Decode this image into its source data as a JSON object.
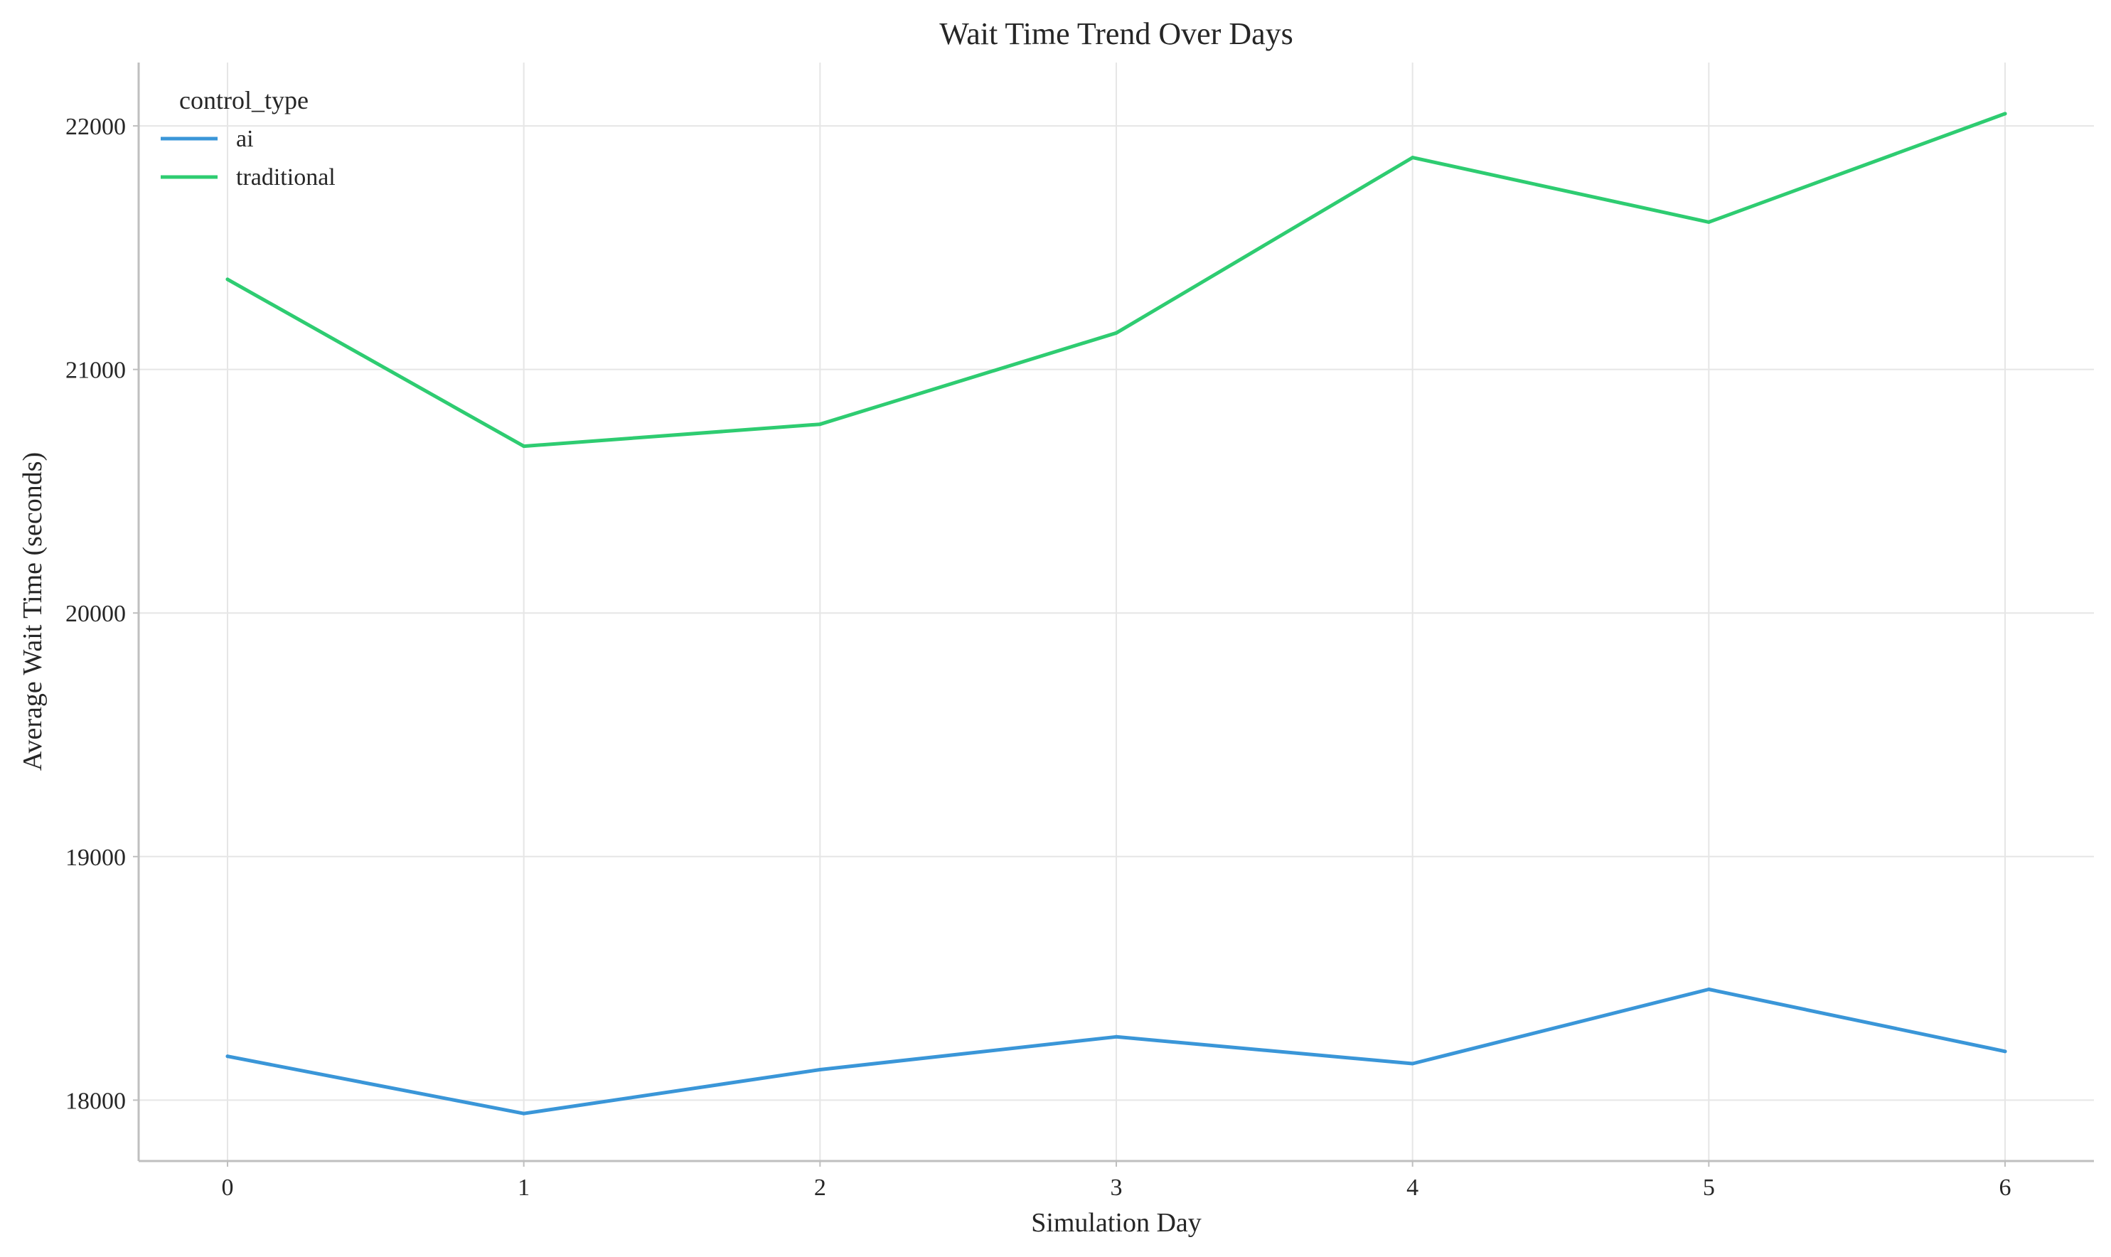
{
  "chart_data": {
    "type": "line",
    "title": "Wait Time Trend Over Days",
    "xlabel": "Simulation Day",
    "ylabel": "Average Wait Time (seconds)",
    "x": [
      0,
      1,
      2,
      3,
      4,
      5,
      6
    ],
    "xlim": [
      -0.3,
      6.3
    ],
    "ylim": [
      17750,
      22260
    ],
    "xticks": [
      0,
      1,
      2,
      3,
      4,
      5,
      6
    ],
    "yticks": [
      18000,
      19000,
      20000,
      21000,
      22000
    ],
    "grid": true,
    "legend": {
      "title": "control_type",
      "placement": "top-left"
    },
    "series": [
      {
        "name": "ai",
        "color": "#3a96d8",
        "values": [
          18180,
          17945,
          18125,
          18260,
          18150,
          18455,
          18200
        ]
      },
      {
        "name": "traditional",
        "color": "#2ecc71",
        "values": [
          21370,
          20685,
          20775,
          21150,
          21870,
          21605,
          22050
        ]
      }
    ]
  }
}
